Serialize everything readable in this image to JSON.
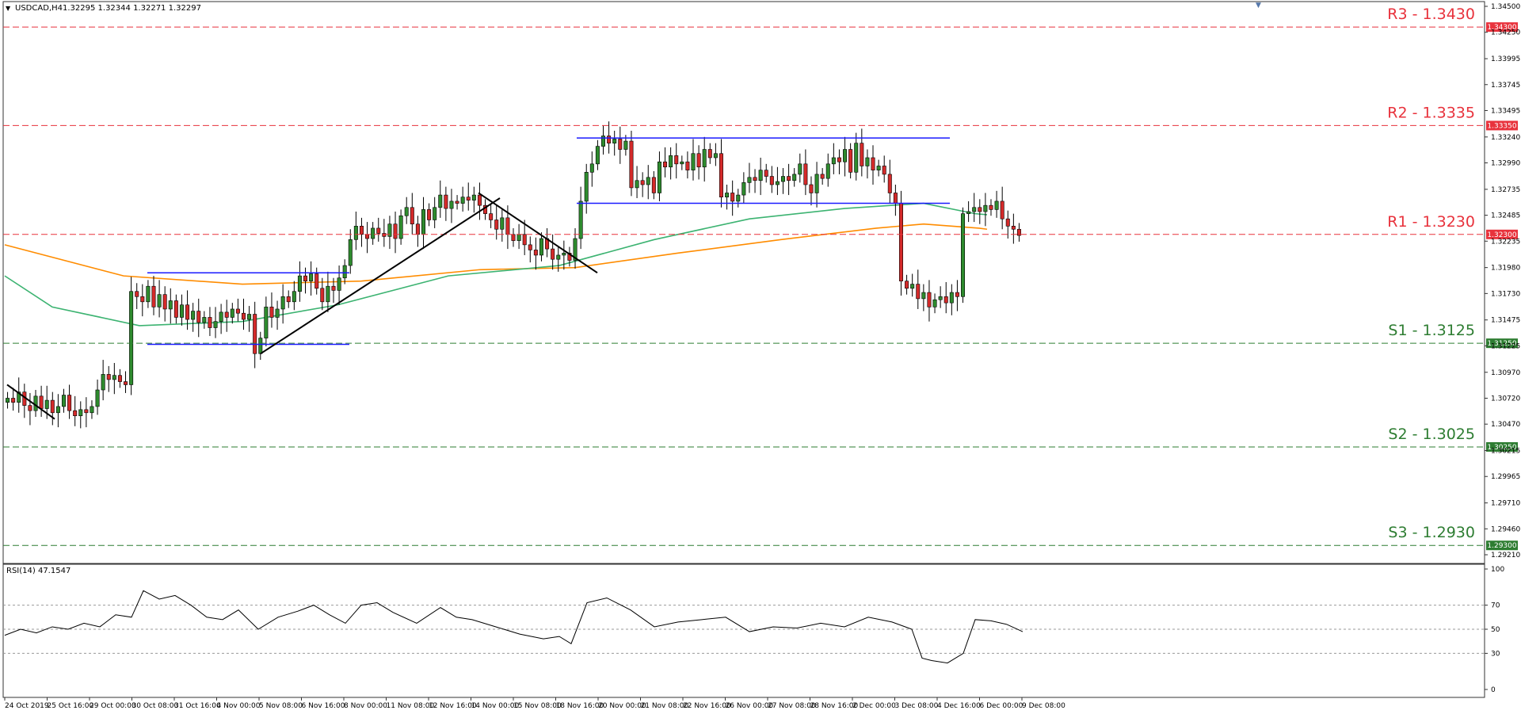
{
  "window": {
    "title": "USDCAD,H4",
    "ohlc": "1.32295 1.32344 1.32271 1.32297"
  },
  "rsi_panel": {
    "label": "RSI(14) 47.1547"
  },
  "colors": {
    "up_candle": "#2e8b2e",
    "down_candle": "#d42a2a",
    "resistance": "#e8323c",
    "support": "#2e7d32",
    "ma_fast": "#3cb371",
    "ma_slow": "#ff8c00",
    "range_lines": "#1a1aff",
    "trendlines": "#000000",
    "rsi_line": "#000000"
  },
  "chart_data": {
    "type": "candlestick",
    "title": "USDCAD,H4",
    "ylim": [
      1.2921,
      1.345
    ],
    "y_ticks": [
      "1.34500",
      "1.34250",
      "1.33995",
      "1.33745",
      "1.33495",
      "1.33240",
      "1.32990",
      "1.32735",
      "1.32485",
      "1.32235",
      "1.31980",
      "1.31730",
      "1.31475",
      "1.31225",
      "1.30970",
      "1.30720",
      "1.30470",
      "1.30215",
      "1.29965",
      "1.29710",
      "1.29460",
      "1.29210"
    ],
    "x_ticks": [
      "24 Oct 2019",
      "25 Oct 16:00",
      "29 Oct 00:00",
      "30 Oct 08:00",
      "31 Oct 16:00",
      "4 Nov 00:00",
      "5 Nov 08:00",
      "6 Nov 16:00",
      "8 Nov 00:00",
      "11 Nov 08:00",
      "12 Nov 16:00",
      "14 Nov 00:00",
      "15 Nov 08:00",
      "18 Nov 16:00",
      "20 Nov 00:00",
      "21 Nov 08:00",
      "22 Nov 16:00",
      "26 Nov 00:00",
      "27 Nov 08:00",
      "28 Nov 16:00",
      "2 Dec 00:00",
      "3 Dec 08:00",
      "4 Dec 16:00",
      "6 Dec 00:00",
      "9 Dec 08:00"
    ],
    "levels": [
      {
        "label": "R3 - 1.3430",
        "value": 1.343,
        "tag": "1.34300",
        "kind": "resistance"
      },
      {
        "label": "R2 - 1.3335",
        "value": 1.3335,
        "tag": "1.33350",
        "kind": "resistance"
      },
      {
        "label": "R1 - 1.3230",
        "value": 1.323,
        "tag": "1.32300",
        "kind": "resistance"
      },
      {
        "label": "S1 - 1.3125",
        "value": 1.3125,
        "tag": "1.31250",
        "kind": "support"
      },
      {
        "label": "S2 - 1.3025",
        "value": 1.3025,
        "tag": "1.30250",
        "kind": "support"
      },
      {
        "label": "S3 - 1.2930",
        "value": 1.293,
        "tag": "1.29300",
        "kind": "support"
      }
    ],
    "closes": [
      1.3072,
      1.3068,
      1.3078,
      1.3065,
      1.306,
      1.3074,
      1.3062,
      1.307,
      1.3058,
      1.3064,
      1.3075,
      1.306,
      1.3055,
      1.3061,
      1.3058,
      1.3064,
      1.308,
      1.3095,
      1.309,
      1.3094,
      1.3088,
      1.3085,
      1.3175,
      1.317,
      1.3165,
      1.318,
      1.316,
      1.3172,
      1.3158,
      1.3166,
      1.315,
      1.3162,
      1.3148,
      1.3156,
      1.3145,
      1.315,
      1.314,
      1.3146,
      1.3155,
      1.315,
      1.3158,
      1.3154,
      1.3148,
      1.3153,
      1.3115,
      1.313,
      1.316,
      1.315,
      1.3158,
      1.317,
      1.3165,
      1.3175,
      1.319,
      1.3185,
      1.3192,
      1.3178,
      1.3165,
      1.318,
      1.3176,
      1.3188,
      1.32,
      1.3225,
      1.3238,
      1.323,
      1.3226,
      1.3236,
      1.3231,
      1.3228,
      1.324,
      1.3226,
      1.3248,
      1.3256,
      1.324,
      1.323,
      1.3254,
      1.3244,
      1.3256,
      1.3268,
      1.3255,
      1.3262,
      1.326,
      1.3266,
      1.3263,
      1.3268,
      1.3258,
      1.325,
      1.3244,
      1.3235,
      1.3246,
      1.323,
      1.3224,
      1.323,
      1.322,
      1.3215,
      1.321,
      1.3226,
      1.3216,
      1.3206,
      1.321,
      1.3212,
      1.3205,
      1.3226,
      1.3262,
      1.329,
      1.3298,
      1.3315,
      1.3325,
      1.3318,
      1.3322,
      1.3312,
      1.332,
      1.3275,
      1.3282,
      1.3278,
      1.3285,
      1.327,
      1.33,
      1.3295,
      1.3306,
      1.3298,
      1.33,
      1.3292,
      1.3308,
      1.3295,
      1.3312,
      1.3304,
      1.3308,
      1.3266,
      1.327,
      1.3262,
      1.3268,
      1.328,
      1.3285,
      1.3282,
      1.3292,
      1.3286,
      1.3278,
      1.3281,
      1.3286,
      1.3282,
      1.3288,
      1.3298,
      1.3278,
      1.327,
      1.3288,
      1.3284,
      1.3298,
      1.3304,
      1.33,
      1.3312,
      1.329,
      1.3318,
      1.3296,
      1.3304,
      1.3292,
      1.3296,
      1.3288,
      1.327,
      1.326,
      1.3185,
      1.3178,
      1.3182,
      1.3168,
      1.3174,
      1.316,
      1.3167,
      1.317,
      1.3164,
      1.3174,
      1.317,
      1.325,
      1.3252,
      1.3256,
      1.3252,
      1.3258,
      1.3254,
      1.3262,
      1.3245,
      1.3238,
      1.3235,
      1.3229
    ],
    "ma_fast": [
      [
        0,
        1.319
      ],
      [
        60,
        1.316
      ],
      [
        170,
        1.3142
      ],
      [
        300,
        1.3146
      ],
      [
        420,
        1.3162
      ],
      [
        560,
        1.319
      ],
      [
        700,
        1.32
      ],
      [
        820,
        1.3225
      ],
      [
        940,
        1.3245
      ],
      [
        1060,
        1.3255
      ],
      [
        1160,
        1.326
      ],
      [
        1225,
        1.325
      ],
      [
        1240,
        1.3249
      ]
    ],
    "ma_slow": [
      [
        0,
        1.322
      ],
      [
        150,
        1.319
      ],
      [
        300,
        1.3182
      ],
      [
        450,
        1.3185
      ],
      [
        600,
        1.3196
      ],
      [
        720,
        1.3198
      ],
      [
        850,
        1.3212
      ],
      [
        980,
        1.3225
      ],
      [
        1100,
        1.3236
      ],
      [
        1160,
        1.324
      ],
      [
        1230,
        1.3236
      ],
      [
        1240,
        1.3235
      ]
    ],
    "range_boxes": [
      {
        "top": 1.3193,
        "bottom": 1.3124,
        "x0": 180,
        "x1": 435
      },
      {
        "top": 1.3323,
        "bottom": 1.326,
        "x0": 722,
        "x1": 1193
      }
    ],
    "trendlines": [
      [
        [
          3,
          1.3085
        ],
        [
          63,
          1.3052
        ]
      ],
      [
        [
          323,
          1.3115
        ],
        [
          625,
          1.3265
        ]
      ],
      [
        [
          598,
          1.327
        ],
        [
          748,
          1.3193
        ]
      ]
    ],
    "rsi": {
      "ylim": [
        0,
        100
      ],
      "ticks": [
        "100",
        "70",
        "50",
        "30",
        "0"
      ],
      "values": [
        [
          0,
          45
        ],
        [
          20,
          50
        ],
        [
          40,
          47
        ],
        [
          60,
          52
        ],
        [
          80,
          50
        ],
        [
          100,
          55
        ],
        [
          120,
          52
        ],
        [
          140,
          62
        ],
        [
          160,
          60
        ],
        [
          175,
          82
        ],
        [
          195,
          75
        ],
        [
          215,
          78
        ],
        [
          235,
          70
        ],
        [
          255,
          60
        ],
        [
          275,
          58
        ],
        [
          295,
          66
        ],
        [
          320,
          50
        ],
        [
          345,
          60
        ],
        [
          370,
          65
        ],
        [
          390,
          70
        ],
        [
          410,
          62
        ],
        [
          430,
          55
        ],
        [
          450,
          70
        ],
        [
          470,
          72
        ],
        [
          490,
          64
        ],
        [
          520,
          55
        ],
        [
          550,
          68
        ],
        [
          570,
          60
        ],
        [
          590,
          58
        ],
        [
          620,
          52
        ],
        [
          650,
          46
        ],
        [
          680,
          42
        ],
        [
          700,
          44
        ],
        [
          715,
          38
        ],
        [
          735,
          72
        ],
        [
          760,
          76
        ],
        [
          790,
          66
        ],
        [
          820,
          52
        ],
        [
          850,
          56
        ],
        [
          880,
          58
        ],
        [
          910,
          60
        ],
        [
          940,
          48
        ],
        [
          970,
          52
        ],
        [
          1000,
          51
        ],
        [
          1030,
          55
        ],
        [
          1060,
          52
        ],
        [
          1090,
          60
        ],
        [
          1120,
          56
        ],
        [
          1145,
          50
        ],
        [
          1158,
          26
        ],
        [
          1170,
          24
        ],
        [
          1190,
          22
        ],
        [
          1210,
          30
        ],
        [
          1225,
          58
        ],
        [
          1245,
          57
        ],
        [
          1265,
          54
        ],
        [
          1285,
          48
        ]
      ]
    }
  }
}
